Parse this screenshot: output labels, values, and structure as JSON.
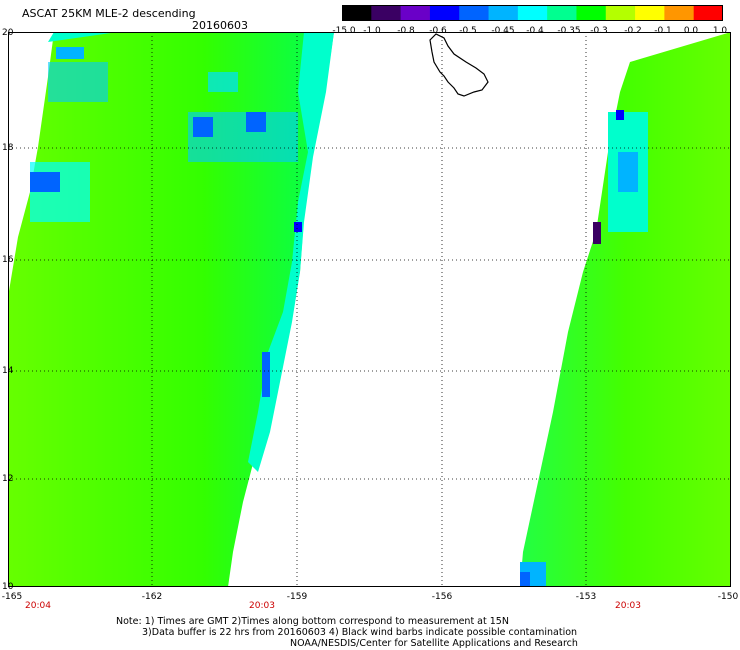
{
  "title": "ASCAT 25KM MLE-2 descending",
  "date": "20160603",
  "colorbar": {
    "labels": [
      "-15.0",
      "-1.0",
      "-0.8",
      "-0.6",
      "-0.5",
      "-0.45",
      "-0.4",
      "-0.35",
      "-0.3",
      "-0.2",
      "-0.1",
      "0.0",
      "1.0"
    ],
    "colors": [
      "#000000",
      "#3a0063",
      "#6a00c8",
      "#0000ff",
      "#0064ff",
      "#00b4ff",
      "#00ffff",
      "#00ff90",
      "#00ff00",
      "#b4ff00",
      "#ffff00",
      "#ff9600",
      "#ff0000"
    ]
  },
  "map": {
    "lat_labels": [
      "20",
      "18",
      "16",
      "14",
      "12",
      "10"
    ],
    "lon_labels": [
      "-165",
      "-162",
      "-159",
      "-156",
      "-153",
      "-150"
    ],
    "time_labels": [
      "20:04",
      "20:03",
      "20:03"
    ]
  },
  "notes": {
    "line1": "Note: 1) Times are GMT 2)Times along bottom correspond to measurement at 15N",
    "line2": "3)Data buffer is 22 hrs from 20160603 4) Black wind barbs indicate possible contamination",
    "line3": "NOAA/NESDIS/Center for Satellite Applications and Research"
  }
}
